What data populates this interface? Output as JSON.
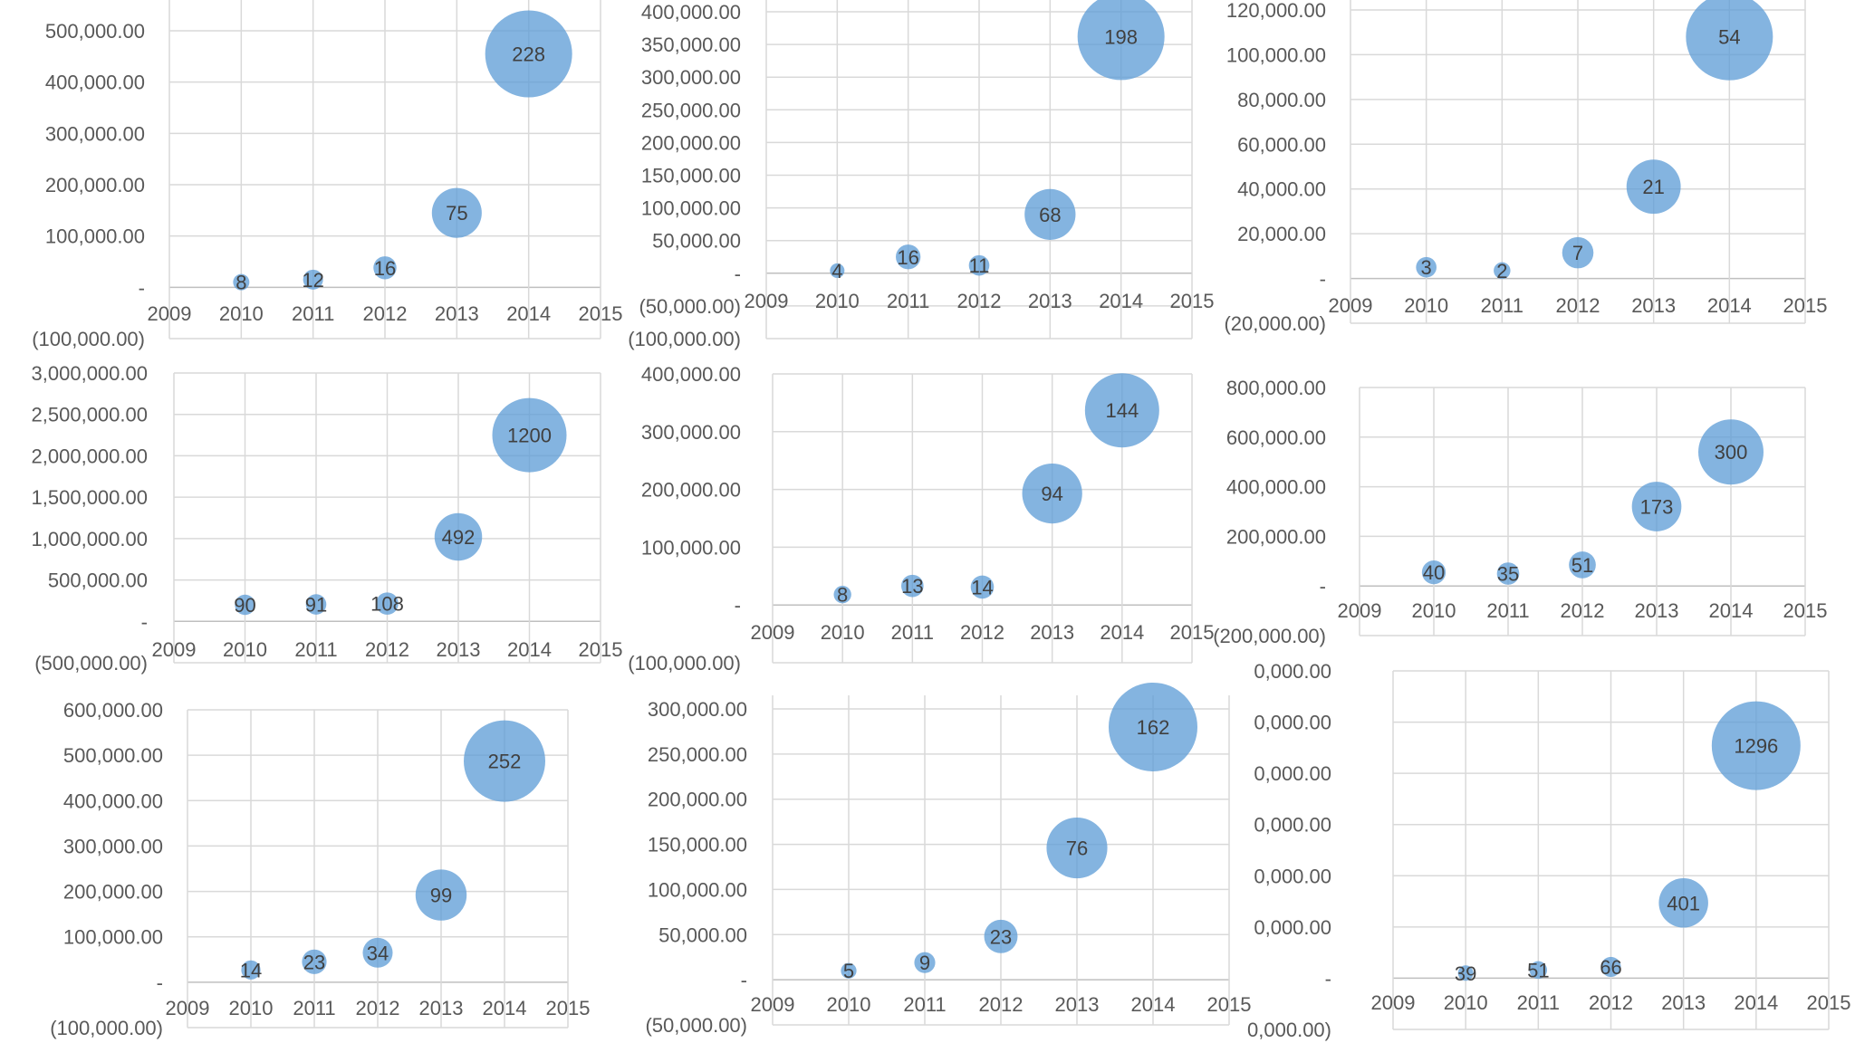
{
  "chart_data": [
    {
      "type": "bubble",
      "title": "",
      "xlim": [
        2009,
        2015
      ],
      "x_ticks": [
        "2009",
        "2010",
        "2011",
        "2012",
        "2013",
        "2014",
        "2015"
      ],
      "ylim": [
        -100000,
        500000
      ],
      "y_ticks": [
        {
          "v": -100000,
          "label": "(100,000.00)"
        },
        {
          "v": 0,
          "label": "-"
        },
        {
          "v": 100000,
          "label": "100,000.00"
        },
        {
          "v": 200000,
          "label": "200,000.00"
        },
        {
          "v": 300000,
          "label": "300,000.00"
        },
        {
          "v": 400000,
          "label": "400,000.00"
        },
        {
          "v": 500000,
          "label": "500,000.00"
        }
      ],
      "points": [
        {
          "x": 2010,
          "y": 10000,
          "size": 8
        },
        {
          "x": 2011,
          "y": 15000,
          "size": 12
        },
        {
          "x": 2012,
          "y": 38000,
          "size": 16
        },
        {
          "x": 2013,
          "y": 145000,
          "size": 75
        },
        {
          "x": 2014,
          "y": 455000,
          "size": 228
        }
      ]
    },
    {
      "type": "bubble",
      "title": "",
      "xlim": [
        2009,
        2015
      ],
      "x_ticks": [
        "2009",
        "2010",
        "2011",
        "2012",
        "2013",
        "2014",
        "2015"
      ],
      "ylim": [
        -100000,
        400000
      ],
      "y_ticks": [
        {
          "v": -100000,
          "label": "(100,000.00)"
        },
        {
          "v": -50000,
          "label": "(50,000.00)"
        },
        {
          "v": 0,
          "label": "-"
        },
        {
          "v": 50000,
          "label": "50,000.00"
        },
        {
          "v": 100000,
          "label": "100,000.00"
        },
        {
          "v": 150000,
          "label": "150,000.00"
        },
        {
          "v": 200000,
          "label": "200,000.00"
        },
        {
          "v": 250000,
          "label": "250,000.00"
        },
        {
          "v": 300000,
          "label": "300,000.00"
        },
        {
          "v": 350000,
          "label": "350,000.00"
        },
        {
          "v": 400000,
          "label": "400,000.00"
        }
      ],
      "points": [
        {
          "x": 2010,
          "y": 4000,
          "size": 4
        },
        {
          "x": 2011,
          "y": 25000,
          "size": 16
        },
        {
          "x": 2012,
          "y": 12000,
          "size": 11
        },
        {
          "x": 2013,
          "y": 90000,
          "size": 68
        },
        {
          "x": 2014,
          "y": 362000,
          "size": 198
        }
      ]
    },
    {
      "type": "bubble",
      "title": "",
      "xlim": [
        2009,
        2015
      ],
      "x_ticks": [
        "2009",
        "2010",
        "2011",
        "2012",
        "2013",
        "2014",
        "2015"
      ],
      "ylim": [
        -20000,
        120000
      ],
      "y_ticks": [
        {
          "v": -20000,
          "label": "(20,000.00)"
        },
        {
          "v": 0,
          "label": "-"
        },
        {
          "v": 20000,
          "label": "20,000.00"
        },
        {
          "v": 40000,
          "label": "40,000.00"
        },
        {
          "v": 60000,
          "label": "60,000.00"
        },
        {
          "v": 80000,
          "label": "80,000.00"
        },
        {
          "v": 100000,
          "label": "100,000.00"
        },
        {
          "v": 120000,
          "label": "120,000.00"
        }
      ],
      "points": [
        {
          "x": 2010,
          "y": 5000,
          "size": 3
        },
        {
          "x": 2011,
          "y": 3500,
          "size": 2
        },
        {
          "x": 2012,
          "y": 11500,
          "size": 7
        },
        {
          "x": 2013,
          "y": 41000,
          "size": 21
        },
        {
          "x": 2014,
          "y": 108000,
          "size": 54
        }
      ]
    },
    {
      "type": "bubble",
      "title": "",
      "xlim": [
        2009,
        2015
      ],
      "x_ticks": [
        "2009",
        "2010",
        "2011",
        "2012",
        "2013",
        "2014",
        "2015"
      ],
      "ylim": [
        -500000,
        3000000
      ],
      "y_ticks": [
        {
          "v": -500000,
          "label": "(500,000.00)"
        },
        {
          "v": 0,
          "label": "-"
        },
        {
          "v": 500000,
          "label": "500,000.00"
        },
        {
          "v": 1000000,
          "label": "1,000,000.00"
        },
        {
          "v": 1500000,
          "label": "1,500,000.00"
        },
        {
          "v": 2000000,
          "label": "2,000,000.00"
        },
        {
          "v": 2500000,
          "label": "2,500,000.00"
        },
        {
          "v": 3000000,
          "label": "3,000,000.00"
        }
      ],
      "points": [
        {
          "x": 2010,
          "y": 200000,
          "size": 90
        },
        {
          "x": 2011,
          "y": 205000,
          "size": 91
        },
        {
          "x": 2012,
          "y": 215000,
          "size": 108
        },
        {
          "x": 2013,
          "y": 1020000,
          "size": 492
        },
        {
          "x": 2014,
          "y": 2250000,
          "size": 1200
        }
      ]
    },
    {
      "type": "bubble",
      "title": "",
      "xlim": [
        2009,
        2015
      ],
      "x_ticks": [
        "2009",
        "2010",
        "2011",
        "2012",
        "2013",
        "2014",
        "2015"
      ],
      "ylim": [
        -100000,
        400000
      ],
      "y_ticks": [
        {
          "v": -100000,
          "label": "(100,000.00)"
        },
        {
          "v": 0,
          "label": "-"
        },
        {
          "v": 100000,
          "label": "100,000.00"
        },
        {
          "v": 200000,
          "label": "200,000.00"
        },
        {
          "v": 300000,
          "label": "300,000.00"
        },
        {
          "v": 400000,
          "label": "400,000.00"
        }
      ],
      "points": [
        {
          "x": 2010,
          "y": 18000,
          "size": 8
        },
        {
          "x": 2011,
          "y": 33000,
          "size": 13
        },
        {
          "x": 2012,
          "y": 31000,
          "size": 14
        },
        {
          "x": 2013,
          "y": 193000,
          "size": 94
        },
        {
          "x": 2014,
          "y": 337000,
          "size": 144
        }
      ]
    },
    {
      "type": "bubble",
      "title": "",
      "xlim": [
        2009,
        2015
      ],
      "x_ticks": [
        "2009",
        "2010",
        "2011",
        "2012",
        "2013",
        "2014",
        "2015"
      ],
      "ylim": [
        -200000,
        800000
      ],
      "y_ticks": [
        {
          "v": -200000,
          "label": "(200,000.00)"
        },
        {
          "v": 0,
          "label": "-"
        },
        {
          "v": 200000,
          "label": "200,000.00"
        },
        {
          "v": 400000,
          "label": "400,000.00"
        },
        {
          "v": 600000,
          "label": "600,000.00"
        },
        {
          "v": 800000,
          "label": "800,000.00"
        }
      ],
      "points": [
        {
          "x": 2010,
          "y": 55000,
          "size": 40
        },
        {
          "x": 2011,
          "y": 50000,
          "size": 35
        },
        {
          "x": 2012,
          "y": 85000,
          "size": 51
        },
        {
          "x": 2013,
          "y": 320000,
          "size": 173
        },
        {
          "x": 2014,
          "y": 540000,
          "size": 300
        }
      ]
    },
    {
      "type": "bubble",
      "title": "",
      "xlim": [
        2009,
        2015
      ],
      "x_ticks": [
        "2009",
        "2010",
        "2011",
        "2012",
        "2013",
        "2014",
        "2015"
      ],
      "ylim": [
        -100000,
        600000
      ],
      "y_ticks": [
        {
          "v": -100000,
          "label": "(100,000.00)"
        },
        {
          "v": 0,
          "label": "-"
        },
        {
          "v": 100000,
          "label": "100,000.00"
        },
        {
          "v": 200000,
          "label": "200,000.00"
        },
        {
          "v": 300000,
          "label": "300,000.00"
        },
        {
          "v": 400000,
          "label": "400,000.00"
        },
        {
          "v": 500000,
          "label": "500,000.00"
        },
        {
          "v": 600000,
          "label": "600,000.00"
        }
      ],
      "points": [
        {
          "x": 2010,
          "y": 27000,
          "size": 14
        },
        {
          "x": 2011,
          "y": 45000,
          "size": 23
        },
        {
          "x": 2012,
          "y": 65000,
          "size": 34
        },
        {
          "x": 2013,
          "y": 192000,
          "size": 99
        },
        {
          "x": 2014,
          "y": 487000,
          "size": 252
        }
      ]
    },
    {
      "type": "bubble",
      "title": "",
      "xlim": [
        2009,
        2015
      ],
      "x_ticks": [
        "2009",
        "2010",
        "2011",
        "2012",
        "2013",
        "2014",
        "2015"
      ],
      "ylim": [
        -50000,
        300000
      ],
      "y_ticks": [
        {
          "v": -50000,
          "label": "(50,000.00)"
        },
        {
          "v": 0,
          "label": "-"
        },
        {
          "v": 50000,
          "label": "50,000.00"
        },
        {
          "v": 100000,
          "label": "100,000.00"
        },
        {
          "v": 150000,
          "label": "150,000.00"
        },
        {
          "v": 200000,
          "label": "200,000.00"
        },
        {
          "v": 250000,
          "label": "250,000.00"
        },
        {
          "v": 300000,
          "label": "300,000.00"
        }
      ],
      "points": [
        {
          "x": 2010,
          "y": 10000,
          "size": 5
        },
        {
          "x": 2011,
          "y": 19000,
          "size": 9
        },
        {
          "x": 2012,
          "y": 48000,
          "size": 23
        },
        {
          "x": 2013,
          "y": 146000,
          "size": 76
        },
        {
          "x": 2014,
          "y": 280000,
          "size": 162
        }
      ]
    },
    {
      "type": "bubble",
      "title": "",
      "xlim": [
        2009,
        2015
      ],
      "x_ticks": [
        "2009",
        "2010",
        "2011",
        "2012",
        "2013",
        "2014",
        "2015"
      ],
      "ylim": [
        -1000000,
        6000000
      ],
      "y_ticks": [
        {
          "v": -1000000,
          "label": "0,000.00)"
        },
        {
          "v": 0,
          "label": "-"
        },
        {
          "v": 1000000,
          "label": "0,000.00"
        },
        {
          "v": 2000000,
          "label": "0,000.00"
        },
        {
          "v": 3000000,
          "label": "0,000.00"
        },
        {
          "v": 4000000,
          "label": "0,000.00"
        },
        {
          "v": 5000000,
          "label": "0,000.00"
        },
        {
          "v": 6000000,
          "label": "0,000.00"
        }
      ],
      "points": [
        {
          "x": 2010,
          "y": 100000,
          "size": 39
        },
        {
          "x": 2011,
          "y": 160000,
          "size": 51
        },
        {
          "x": 2012,
          "y": 220000,
          "size": 66
        },
        {
          "x": 2013,
          "y": 1470000,
          "size": 401
        },
        {
          "x": 2014,
          "y": 4540000,
          "size": 1296
        }
      ]
    }
  ]
}
